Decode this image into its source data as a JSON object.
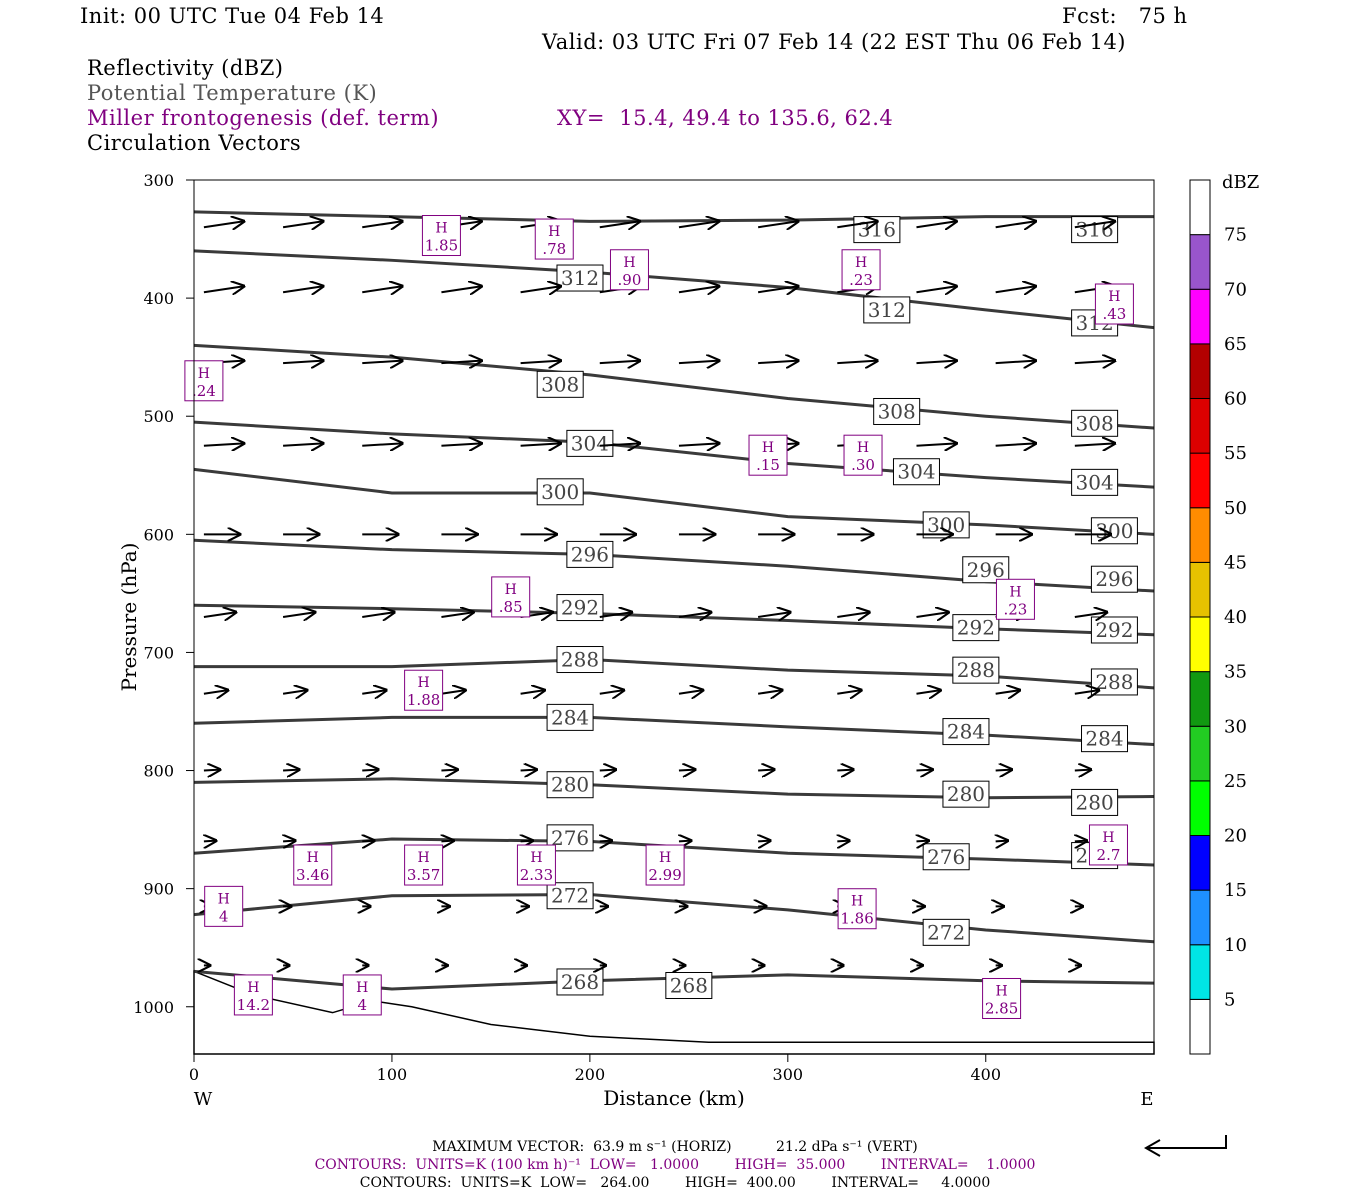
{
  "header": {
    "init": "Init: 00 UTC Tue 04 Feb 14",
    "fcst": "Fcst:   75 h",
    "valid": "Valid: 03 UTC Fri 07 Feb 14 (22 EST Thu 06 Feb 14)"
  },
  "legend": {
    "reflectivity": "Reflectivity (dBZ)",
    "theta": "Potential Temperature (K)",
    "frontogenesis": "Miller frontogenesis (def. term)",
    "xy": "XY=  15.4, 49.4 to 135.6, 62.4",
    "vectors": "Circulation Vectors"
  },
  "footer": {
    "line1": "MAXIMUM VECTOR:  63.9 m s⁻¹ (HORIZ)          21.2 dPa s⁻¹ (VERT)",
    "line2": "CONTOURS:  UNITS=K (100 km h)⁻¹  LOW=   1.0000        HIGH=  35.000        INTERVAL=    1.0000",
    "line3": "CONTOURS:  UNITS=K  LOW=   264.00        HIGH=  400.00        INTERVAL=     4.0000"
  },
  "colors": {
    "theta_line": "#3a3a3a",
    "fronto_line": "#800080",
    "vector": "#000000"
  },
  "chart_data": {
    "type": "line",
    "xlabel": "Distance (km)",
    "ylabel": "Pressure (hPa)",
    "xlim": [
      0,
      485
    ],
    "ylim": [
      300,
      1040
    ],
    "y_inverted": true,
    "x_ticks": [
      "0",
      "100",
      "200",
      "300",
      "400"
    ],
    "y_ticks": [
      "300",
      "400",
      "500",
      "600",
      "700",
      "800",
      "900",
      "1000"
    ],
    "x_end_labels": {
      "left": "W",
      "right": "E"
    },
    "colorbar": {
      "title": "dBZ",
      "levels": [
        "5",
        "10",
        "15",
        "20",
        "25",
        "30",
        "35",
        "40",
        "45",
        "50",
        "55",
        "60",
        "65",
        "70",
        "75"
      ],
      "colors": [
        "#ffffff",
        "#00e5e5",
        "#1e90ff",
        "#0000ff",
        "#00ff00",
        "#22cc22",
        "#119911",
        "#ffff00",
        "#e6c200",
        "#ff8c00",
        "#ff0000",
        "#dd0000",
        "#b30000",
        "#ff00ff",
        "#9955cc",
        "#ffffff"
      ]
    },
    "theta_contours": [
      {
        "label": "316",
        "points": [
          [
            0,
            327
          ],
          [
            100,
            331
          ],
          [
            200,
            335
          ],
          [
            300,
            334
          ],
          [
            400,
            331
          ],
          [
            485,
            331
          ]
        ],
        "labels_at": [
          [
            345,
            342
          ],
          [
            455,
            342
          ]
        ]
      },
      {
        "label": "312",
        "points": [
          [
            0,
            360
          ],
          [
            100,
            368
          ],
          [
            200,
            378
          ],
          [
            300,
            391
          ],
          [
            400,
            410
          ],
          [
            485,
            425
          ]
        ],
        "labels_at": [
          [
            195,
            383
          ],
          [
            350,
            410
          ],
          [
            455,
            421
          ]
        ]
      },
      {
        "label": "308",
        "points": [
          [
            0,
            440
          ],
          [
            100,
            450
          ],
          [
            200,
            465
          ],
          [
            300,
            485
          ],
          [
            400,
            500
          ],
          [
            485,
            510
          ]
        ],
        "labels_at": [
          [
            185,
            473
          ],
          [
            355,
            496
          ],
          [
            455,
            506
          ]
        ]
      },
      {
        "label": "304",
        "points": [
          [
            0,
            505
          ],
          [
            100,
            515
          ],
          [
            200,
            522
          ],
          [
            300,
            540
          ],
          [
            400,
            552
          ],
          [
            485,
            560
          ]
        ],
        "labels_at": [
          [
            200,
            523
          ],
          [
            365,
            547
          ],
          [
            455,
            556
          ]
        ]
      },
      {
        "label": "300",
        "points": [
          [
            0,
            545
          ],
          [
            100,
            565
          ],
          [
            200,
            565
          ],
          [
            300,
            585
          ],
          [
            400,
            592
          ],
          [
            485,
            600
          ]
        ],
        "labels_at": [
          [
            185,
            564
          ],
          [
            380,
            592
          ],
          [
            465,
            597
          ]
        ]
      },
      {
        "label": "296",
        "points": [
          [
            0,
            605
          ],
          [
            100,
            613
          ],
          [
            200,
            617
          ],
          [
            300,
            627
          ],
          [
            400,
            640
          ],
          [
            485,
            648
          ]
        ],
        "labels_at": [
          [
            200,
            617
          ],
          [
            400,
            630
          ],
          [
            465,
            638
          ]
        ]
      },
      {
        "label": "292",
        "points": [
          [
            0,
            660
          ],
          [
            100,
            663
          ],
          [
            200,
            667
          ],
          [
            300,
            673
          ],
          [
            400,
            680
          ],
          [
            485,
            685
          ]
        ],
        "labels_at": [
          [
            195,
            662
          ],
          [
            395,
            679
          ],
          [
            465,
            681
          ]
        ]
      },
      {
        "label": "288",
        "points": [
          [
            0,
            712
          ],
          [
            100,
            712
          ],
          [
            200,
            706
          ],
          [
            300,
            715
          ],
          [
            400,
            720
          ],
          [
            485,
            730
          ]
        ],
        "labels_at": [
          [
            195,
            706
          ],
          [
            395,
            715
          ],
          [
            465,
            725
          ]
        ]
      },
      {
        "label": "284",
        "points": [
          [
            0,
            760
          ],
          [
            100,
            755
          ],
          [
            200,
            755
          ],
          [
            300,
            763
          ],
          [
            400,
            770
          ],
          [
            485,
            778
          ]
        ],
        "labels_at": [
          [
            190,
            755
          ],
          [
            390,
            767
          ],
          [
            460,
            773
          ]
        ]
      },
      {
        "label": "280",
        "points": [
          [
            0,
            810
          ],
          [
            100,
            807
          ],
          [
            200,
            812
          ],
          [
            300,
            820
          ],
          [
            400,
            823
          ],
          [
            485,
            822
          ]
        ],
        "labels_at": [
          [
            190,
            812
          ],
          [
            390,
            820
          ],
          [
            455,
            827
          ]
        ]
      },
      {
        "label": "276",
        "points": [
          [
            0,
            870
          ],
          [
            100,
            858
          ],
          [
            200,
            860
          ],
          [
            300,
            870
          ],
          [
            400,
            875
          ],
          [
            485,
            880
          ]
        ],
        "labels_at": [
          [
            190,
            857
          ],
          [
            380,
            873
          ],
          [
            455,
            872
          ]
        ]
      },
      {
        "label": "272",
        "points": [
          [
            0,
            922
          ],
          [
            100,
            906
          ],
          [
            200,
            905
          ],
          [
            300,
            918
          ],
          [
            400,
            935
          ],
          [
            485,
            945
          ]
        ],
        "labels_at": [
          [
            190,
            906
          ],
          [
            380,
            937
          ]
        ]
      },
      {
        "label": "268",
        "points": [
          [
            0,
            970
          ],
          [
            100,
            985
          ],
          [
            200,
            978
          ],
          [
            300,
            973
          ],
          [
            400,
            978
          ],
          [
            485,
            980
          ]
        ],
        "labels_at": [
          [
            195,
            979
          ],
          [
            250,
            982
          ]
        ]
      }
    ],
    "fronto_maxima": [
      {
        "value": "1.85",
        "x": 125,
        "p": 347
      },
      {
        "value": ".78",
        "x": 182,
        "p": 350
      },
      {
        "value": ".90",
        "x": 220,
        "p": 376
      },
      {
        "value": ".23",
        "x": 337,
        "p": 376
      },
      {
        "value": ".43",
        "x": 465,
        "p": 405
      },
      {
        "value": ".24",
        "x": 5,
        "p": 470
      },
      {
        "value": ".15",
        "x": 290,
        "p": 533
      },
      {
        "value": ".30",
        "x": 338,
        "p": 533
      },
      {
        "value": ".85",
        "x": 160,
        "p": 653
      },
      {
        "value": ".23",
        "x": 415,
        "p": 655
      },
      {
        "value": "1.88",
        "x": 116,
        "p": 732
      },
      {
        "value": "3.46",
        "x": 60,
        "p": 880
      },
      {
        "value": "3.57",
        "x": 116,
        "p": 880
      },
      {
        "value": "2.33",
        "x": 173,
        "p": 880
      },
      {
        "value": "2.99",
        "x": 238,
        "p": 880
      },
      {
        "value": "2.7",
        "x": 462,
        "p": 863
      },
      {
        "value": "1.86",
        "x": 335,
        "p": 917
      },
      {
        "value": "4",
        "x": 15,
        "p": 915
      },
      {
        "value": "2.85",
        "x": 408,
        "p": 993
      },
      {
        "value": "14.2",
        "x": 30,
        "p": 990
      },
      {
        "value": "4",
        "x": 85,
        "p": 990
      }
    ],
    "vector_rows": [
      {
        "p": 340,
        "u": 1.0,
        "w": -0.05
      },
      {
        "p": 395,
        "u": 1.0,
        "w": -0.05
      },
      {
        "p": 455,
        "u": 1.0,
        "w": -0.02
      },
      {
        "p": 525,
        "u": 1.0,
        "w": -0.02
      },
      {
        "p": 600,
        "u": 0.9,
        "w": 0.0
      },
      {
        "p": 670,
        "u": 0.8,
        "w": -0.05
      },
      {
        "p": 735,
        "u": 0.6,
        "w": -0.05
      },
      {
        "p": 800,
        "u": 0.4,
        "w": -0.02
      },
      {
        "p": 860,
        "u": 0.3,
        "w": -0.02
      },
      {
        "p": 915,
        "u": 0.2,
        "w": 0.0
      },
      {
        "p": 965,
        "u": 0.15,
        "w": 0.0
      }
    ]
  }
}
